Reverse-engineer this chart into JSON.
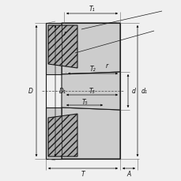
{
  "bg_color": "#f0f0f0",
  "line_color": "#1a1a1a",
  "dim_color": "#1a1a1a",
  "fig_size": [
    2.3,
    2.3
  ],
  "dpi": 100,
  "labels": {
    "T1": "T₁",
    "T2": "T₂",
    "T3": "T₃",
    "T5": "T₅",
    "T": "T",
    "A": "A",
    "D": "D",
    "D1": "D₁",
    "d": "d",
    "d1": "d₁",
    "r1": "r",
    "r2": "r"
  },
  "gray_light": "#cccccc",
  "gray_mid": "#aaaaaa",
  "gray_dark": "#888888",
  "white": "#ffffff"
}
